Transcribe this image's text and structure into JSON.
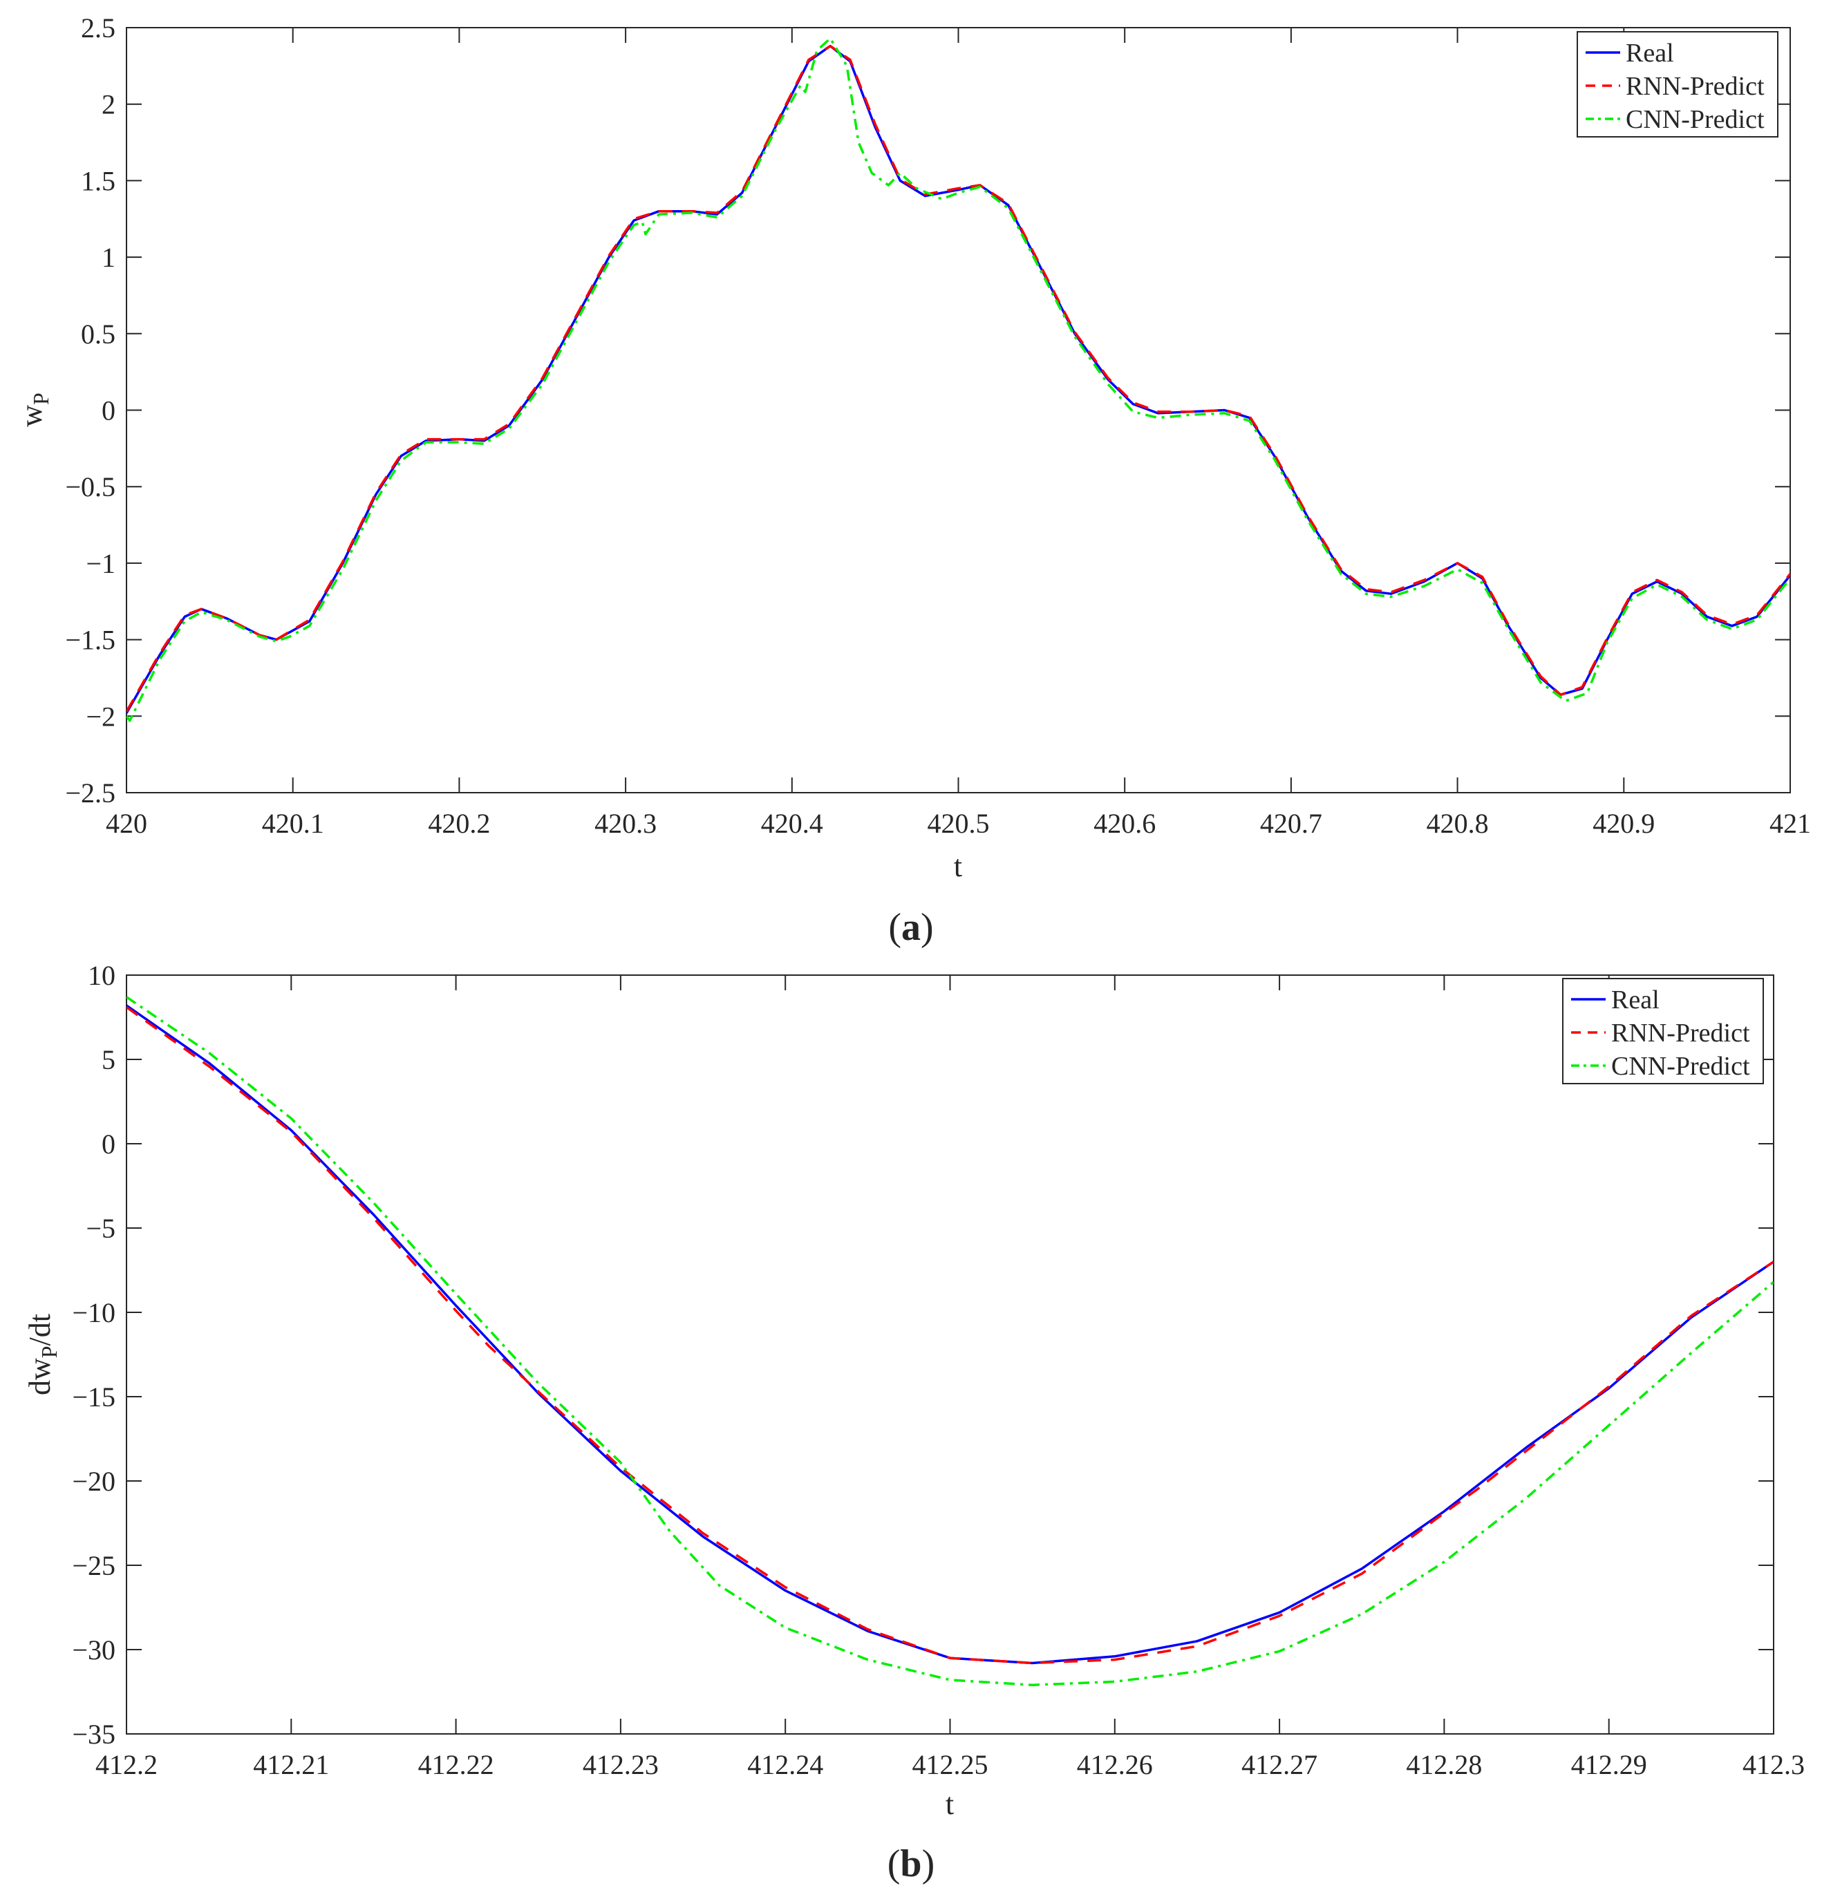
{
  "panels": [
    {
      "caption_open": "(",
      "caption_letter": "a",
      "caption_close": ")",
      "chart_data": {
        "type": "line",
        "title": "",
        "xlabel": "t",
        "ylabel_main": "w",
        "ylabel_sub": "P",
        "ylabel_tail": "",
        "xlim": [
          420,
          421
        ],
        "ylim": [
          -2.5,
          2.5
        ],
        "xticks": [
          420,
          420.1,
          420.2,
          420.3,
          420.4,
          420.5,
          420.6,
          420.7,
          420.8,
          420.9,
          421
        ],
        "xtick_labels": [
          "420",
          "420.1",
          "420.2",
          "420.3",
          "420.4",
          "420.5",
          "420.6",
          "420.7",
          "420.8",
          "420.9",
          "421"
        ],
        "yticks": [
          2.5,
          2,
          1.5,
          1,
          0.5,
          0,
          -0.5,
          -1,
          -1.5,
          -2,
          -2.5
        ],
        "ytick_labels": [
          "2.5",
          "2",
          "1.5",
          "1",
          "0.5",
          "0",
          "−0.5",
          "−1",
          "−1.5",
          "−2",
          "−2.5"
        ],
        "grid": false,
        "legend_position": "top-right",
        "series": [
          {
            "name": "Real",
            "color": "#0000ff",
            "style": "solid",
            "x": [
              420.0,
              420.02,
              420.035,
              420.045,
              420.06,
              420.08,
              420.09,
              420.11,
              420.13,
              420.15,
              420.165,
              420.18,
              420.2,
              420.215,
              420.23,
              420.25,
              420.27,
              420.29,
              420.305,
              420.32,
              420.34,
              420.355,
              420.37,
              420.39,
              420.41,
              420.423,
              420.435,
              420.45,
              420.465,
              420.48,
              420.5,
              420.513,
              420.53,
              420.55,
              420.57,
              420.59,
              420.605,
              420.62,
              420.64,
              420.66,
              420.675,
              420.69,
              420.71,
              420.73,
              420.745,
              420.76,
              420.78,
              420.8,
              420.815,
              420.83,
              420.85,
              420.862,
              420.875,
              420.89,
              420.905,
              420.92,
              420.935,
              420.95,
              420.965,
              420.98,
              421.0
            ],
            "y": [
              -1.98,
              -1.6,
              -1.35,
              -1.3,
              -1.36,
              -1.47,
              -1.5,
              -1.38,
              -1.0,
              -0.55,
              -0.3,
              -0.2,
              -0.19,
              -0.2,
              -0.1,
              0.2,
              0.6,
              1.0,
              1.24,
              1.3,
              1.3,
              1.28,
              1.42,
              1.85,
              2.28,
              2.38,
              2.28,
              1.85,
              1.5,
              1.4,
              1.44,
              1.47,
              1.34,
              0.92,
              0.5,
              0.2,
              0.04,
              -0.02,
              -0.01,
              0.0,
              -0.05,
              -0.3,
              -0.7,
              -1.05,
              -1.18,
              -1.2,
              -1.12,
              -1.0,
              -1.1,
              -1.4,
              -1.75,
              -1.86,
              -1.82,
              -1.5,
              -1.2,
              -1.12,
              -1.2,
              -1.35,
              -1.41,
              -1.35,
              -1.08
            ]
          },
          {
            "name": "RNN-Predict",
            "color": "#ff0000",
            "style": "dashed",
            "x": [
              420.0,
              420.02,
              420.035,
              420.045,
              420.06,
              420.08,
              420.09,
              420.11,
              420.13,
              420.15,
              420.165,
              420.18,
              420.2,
              420.215,
              420.23,
              420.25,
              420.27,
              420.29,
              420.305,
              420.32,
              420.34,
              420.355,
              420.37,
              420.39,
              420.41,
              420.423,
              420.435,
              420.45,
              420.465,
              420.48,
              420.5,
              420.513,
              420.53,
              420.55,
              420.57,
              420.59,
              420.605,
              420.62,
              420.64,
              420.66,
              420.675,
              420.69,
              420.71,
              420.73,
              420.745,
              420.76,
              420.78,
              420.8,
              420.815,
              420.83,
              420.85,
              420.862,
              420.875,
              420.89,
              420.905,
              420.92,
              420.935,
              420.95,
              420.965,
              420.98,
              421.0
            ],
            "y": [
              -1.97,
              -1.59,
              -1.34,
              -1.3,
              -1.36,
              -1.47,
              -1.5,
              -1.37,
              -0.99,
              -0.54,
              -0.29,
              -0.19,
              -0.19,
              -0.19,
              -0.09,
              0.21,
              0.61,
              1.01,
              1.25,
              1.3,
              1.3,
              1.29,
              1.43,
              1.86,
              2.29,
              2.38,
              2.29,
              1.87,
              1.51,
              1.41,
              1.45,
              1.47,
              1.35,
              0.93,
              0.51,
              0.21,
              0.05,
              -0.01,
              -0.01,
              0.0,
              -0.04,
              -0.29,
              -0.69,
              -1.04,
              -1.17,
              -1.19,
              -1.11,
              -1.0,
              -1.09,
              -1.39,
              -1.74,
              -1.86,
              -1.81,
              -1.49,
              -1.19,
              -1.11,
              -1.19,
              -1.34,
              -1.4,
              -1.34,
              -1.07
            ]
          },
          {
            "name": "CNN-Predict",
            "color": "#00ee00",
            "style": "dashdot",
            "x": [
              420.0,
              420.002,
              420.02,
              420.035,
              420.045,
              420.06,
              420.08,
              420.09,
              420.098,
              420.11,
              420.13,
              420.15,
              420.165,
              420.18,
              420.2,
              420.215,
              420.23,
              420.25,
              420.27,
              420.29,
              420.305,
              420.31,
              420.312,
              420.32,
              420.34,
              420.355,
              420.37,
              420.39,
              420.405,
              420.408,
              420.415,
              420.423,
              420.433,
              420.44,
              420.448,
              420.458,
              420.465,
              420.475,
              420.49,
              420.5,
              420.513,
              420.53,
              420.55,
              420.57,
              420.59,
              420.605,
              420.62,
              420.64,
              420.66,
              420.675,
              420.69,
              420.71,
              420.73,
              420.745,
              420.76,
              420.78,
              420.8,
              420.815,
              420.83,
              420.85,
              420.865,
              420.878,
              420.89,
              420.905,
              420.92,
              420.935,
              420.95,
              420.965,
              420.98,
              421.0
            ],
            "y": [
              -2.0,
              -2.03,
              -1.63,
              -1.38,
              -1.32,
              -1.37,
              -1.48,
              -1.51,
              -1.48,
              -1.41,
              -1.04,
              -0.59,
              -0.33,
              -0.21,
              -0.21,
              -0.22,
              -0.12,
              0.17,
              0.57,
              0.97,
              1.21,
              1.23,
              1.15,
              1.28,
              1.29,
              1.26,
              1.4,
              1.83,
              2.12,
              2.08,
              2.35,
              2.43,
              2.25,
              1.75,
              1.55,
              1.47,
              1.55,
              1.45,
              1.38,
              1.42,
              1.46,
              1.32,
              0.9,
              0.48,
              0.17,
              -0.01,
              -0.05,
              -0.03,
              -0.02,
              -0.07,
              -0.32,
              -0.72,
              -1.07,
              -1.2,
              -1.22,
              -1.15,
              -1.04,
              -1.13,
              -1.42,
              -1.78,
              -1.9,
              -1.85,
              -1.52,
              -1.23,
              -1.14,
              -1.22,
              -1.37,
              -1.43,
              -1.37,
              -1.1
            ]
          }
        ]
      }
    },
    {
      "caption_open": "(",
      "caption_letter": "b",
      "caption_close": ")",
      "chart_data": {
        "type": "line",
        "title": "",
        "xlabel": "t",
        "ylabel_main": "dw",
        "ylabel_sub": "P",
        "ylabel_tail": "/dt",
        "xlim": [
          412.2,
          412.3
        ],
        "ylim": [
          -35,
          10
        ],
        "xticks": [
          412.2,
          412.21,
          412.22,
          412.23,
          412.24,
          412.25,
          412.26,
          412.27,
          412.28,
          412.29,
          412.3
        ],
        "xtick_labels": [
          "412.2",
          "412.21",
          "412.22",
          "412.23",
          "412.24",
          "412.25",
          "412.26",
          "412.27",
          "412.28",
          "412.29",
          "412.3"
        ],
        "yticks": [
          10,
          5,
          0,
          -5,
          -10,
          -15,
          -20,
          -25,
          -30,
          -35
        ],
        "ytick_labels": [
          "10",
          "5",
          "0",
          "−5",
          "−10",
          "−15",
          "−20",
          "−25",
          "−30",
          "−35"
        ],
        "grid": false,
        "legend_position": "top-right",
        "series": [
          {
            "name": "Real",
            "color": "#0000ff",
            "style": "solid",
            "x": [
              412.2,
              412.205,
              412.21,
              412.215,
              412.22,
              412.225,
              412.23,
              412.235,
              412.24,
              412.245,
              412.25,
              412.255,
              412.26,
              412.265,
              412.27,
              412.275,
              412.28,
              412.285,
              412.29,
              412.295,
              412.3
            ],
            "y": [
              8.2,
              4.8,
              0.8,
              -4.2,
              -9.6,
              -14.8,
              -19.4,
              -23.3,
              -26.5,
              -28.9,
              -30.5,
              -30.8,
              -30.4,
              -29.5,
              -27.8,
              -25.2,
              -21.8,
              -18.0,
              -14.5,
              -10.3,
              -7.0
            ]
          },
          {
            "name": "RNN-Predict",
            "color": "#ff0000",
            "style": "dashed",
            "x": [
              412.2,
              412.205,
              412.21,
              412.215,
              412.22,
              412.222,
              412.225,
              412.23,
              412.235,
              412.24,
              412.245,
              412.25,
              412.255,
              412.26,
              412.265,
              412.27,
              412.275,
              412.28,
              412.282,
              412.285,
              412.29,
              412.295,
              412.3
            ],
            "y": [
              8.1,
              4.6,
              0.7,
              -4.4,
              -9.9,
              -12.0,
              -14.7,
              -19.2,
              -23.1,
              -26.3,
              -28.8,
              -30.5,
              -30.8,
              -30.6,
              -29.8,
              -28.0,
              -25.5,
              -21.9,
              -20.5,
              -18.2,
              -14.4,
              -10.2,
              -7.0
            ]
          },
          {
            "name": "CNN-Predict",
            "color": "#00ee00",
            "style": "dashdot",
            "x": [
              412.2,
              412.205,
              412.21,
              412.215,
              412.22,
              412.225,
              412.23,
              412.233,
              412.236,
              412.24,
              412.245,
              412.25,
              412.255,
              412.26,
              412.265,
              412.27,
              412.275,
              412.28,
              412.285,
              412.29,
              412.295,
              412.3
            ],
            "y": [
              8.7,
              5.4,
              1.5,
              -3.5,
              -8.9,
              -14.2,
              -18.9,
              -23.0,
              -26.2,
              -28.7,
              -30.6,
              -31.8,
              -32.1,
              -31.9,
              -31.3,
              -30.1,
              -27.9,
              -24.8,
              -21.0,
              -16.7,
              -12.4,
              -8.2
            ]
          }
        ]
      }
    }
  ]
}
